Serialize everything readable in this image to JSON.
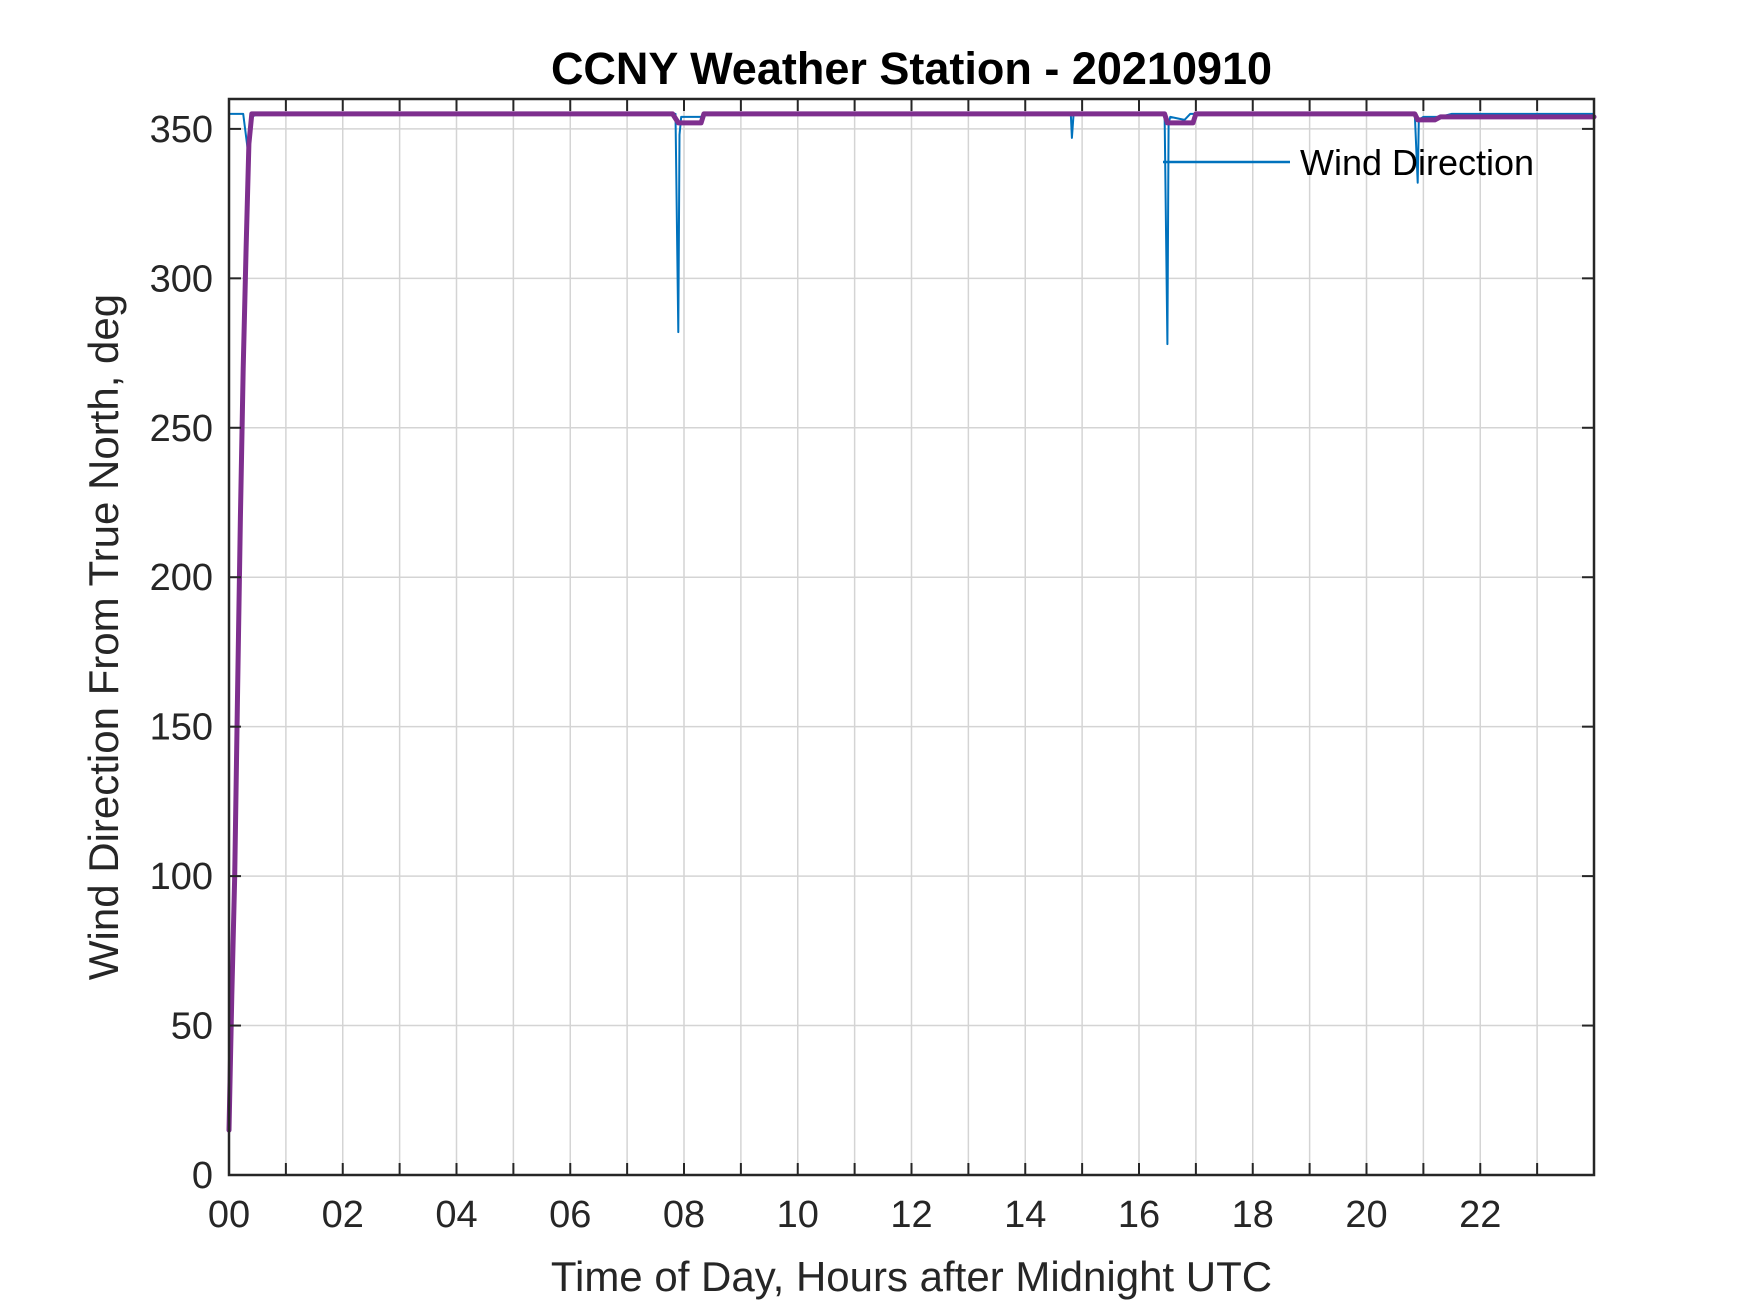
{
  "chart_data": {
    "type": "line",
    "title": "CCNY Weather Station - 20210910",
    "xlabel": "Time of Day, Hours after Midnight UTC",
    "ylabel": "Wind Direction From True North, deg",
    "xlim": [
      0,
      24
    ],
    "ylim": [
      0,
      360
    ],
    "grid": true,
    "x_ticks": [
      0,
      2,
      4,
      6,
      8,
      10,
      12,
      14,
      16,
      18,
      20,
      22
    ],
    "x_tick_labels": [
      "00",
      "02",
      "04",
      "06",
      "08",
      "10",
      "12",
      "14",
      "16",
      "18",
      "20",
      "22"
    ],
    "y_ticks": [
      0,
      50,
      100,
      150,
      200,
      250,
      300,
      350
    ],
    "y_tick_labels": [
      "0",
      "50",
      "100",
      "150",
      "200",
      "250",
      "300",
      "350"
    ],
    "legend": {
      "placement": "top-right",
      "entries": [
        "Wind Direction"
      ]
    },
    "series": [
      {
        "name": "Wind Direction",
        "color": "#0072BD",
        "x": [
          0,
          0.25,
          0.35,
          0.4,
          0.5,
          2,
          4,
          6,
          7.85,
          7.9,
          7.92,
          7.95,
          8.1,
          8.3,
          8.35,
          10,
          12,
          14,
          14.8,
          14.82,
          14.85,
          16,
          16.45,
          16.5,
          16.52,
          16.55,
          16.8,
          16.9,
          18,
          20,
          20.85,
          20.9,
          20.92,
          21.0,
          21.3,
          21.5,
          22,
          24
        ],
        "y": [
          355,
          355,
          340,
          354,
          355,
          355,
          355,
          355,
          355,
          282,
          348,
          354,
          354,
          354,
          355,
          355,
          355,
          355,
          355,
          347,
          355,
          355,
          355,
          278,
          352,
          354,
          353,
          355,
          355,
          355,
          355,
          332,
          353,
          354,
          354,
          355,
          355,
          355
        ]
      },
      {
        "color": "#7E2F8E",
        "x": [
          0,
          0.05,
          0.1,
          0.15,
          0.2,
          0.25,
          0.3,
          0.35,
          0.4,
          1,
          2,
          4,
          6,
          7.8,
          7.9,
          8.3,
          8.35,
          10,
          12,
          14,
          16,
          16.45,
          16.5,
          16.95,
          17.0,
          18,
          20,
          20.85,
          20.9,
          21.2,
          21.3,
          22,
          24
        ],
        "y": [
          15,
          60,
          100,
          160,
          220,
          270,
          310,
          345,
          355,
          355,
          355,
          355,
          355,
          355,
          352,
          352,
          355,
          355,
          355,
          355,
          355,
          355,
          352,
          352,
          355,
          355,
          355,
          355,
          353,
          353,
          354,
          354,
          354
        ]
      }
    ]
  }
}
